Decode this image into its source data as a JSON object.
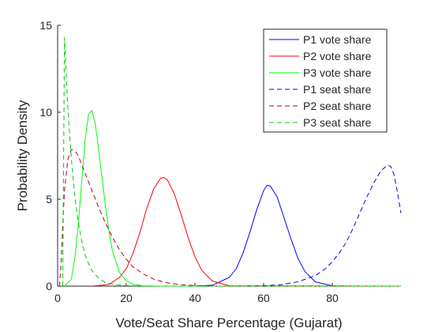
{
  "chart_data": {
    "type": "line",
    "title": "",
    "xlabel": "Vote/Seat Share Percentage (Gujarat)",
    "ylabel": "Probability Density",
    "xlim": [
      0,
      100
    ],
    "ylim": [
      0,
      15
    ],
    "xticks": [
      "0",
      "20",
      "40",
      "60",
      "80"
    ],
    "yticks": [
      "0",
      "5",
      "10",
      "15"
    ],
    "grid": false,
    "legend_position": "top-right",
    "series": [
      {
        "name": "P1 vote share",
        "color": "#0000ff",
        "style": "solid",
        "x": [
          40,
          45,
          50,
          52,
          54,
          56,
          58,
          60,
          61,
          62,
          64,
          66,
          68,
          70,
          72,
          75,
          80,
          85,
          100
        ],
        "y": [
          0,
          0.05,
          0.5,
          1.0,
          1.9,
          3.1,
          4.4,
          5.5,
          5.8,
          5.75,
          5.1,
          3.9,
          2.7,
          1.6,
          0.85,
          0.25,
          0.02,
          0,
          0
        ]
      },
      {
        "name": "P2 vote share",
        "color": "#ff0000",
        "style": "solid",
        "x": [
          10,
          15,
          18,
          20,
          22,
          24,
          26,
          28,
          30,
          31,
          32,
          34,
          36,
          38,
          40,
          42,
          45,
          50,
          100
        ],
        "y": [
          0,
          0.1,
          0.5,
          1.0,
          1.9,
          3.1,
          4.5,
          5.6,
          6.2,
          6.25,
          6.1,
          5.3,
          4.1,
          2.8,
          1.7,
          0.9,
          0.3,
          0.02,
          0
        ]
      },
      {
        "name": "P3 vote share",
        "color": "#00ff00",
        "style": "solid",
        "x": [
          2,
          4,
          5,
          6,
          7,
          8,
          9,
          10,
          11,
          12,
          13,
          14,
          15,
          16,
          18,
          20,
          22,
          25,
          30,
          100
        ],
        "y": [
          0,
          0.4,
          1.6,
          3.5,
          6.0,
          8.4,
          9.9,
          10.1,
          9.3,
          7.8,
          6.1,
          4.5,
          3.1,
          2.0,
          0.8,
          0.3,
          0.1,
          0.02,
          0,
          0
        ]
      },
      {
        "name": "P1 seat share",
        "color": "#0000ff",
        "style": "dashed",
        "x": [
          55,
          60,
          65,
          70,
          75,
          78,
          80,
          82,
          84,
          86,
          88,
          90,
          92,
          94,
          96,
          97,
          98,
          99,
          100
        ],
        "y": [
          0,
          0.02,
          0.08,
          0.25,
          0.6,
          1.0,
          1.4,
          1.9,
          2.5,
          3.3,
          4.2,
          5.1,
          5.9,
          6.6,
          6.95,
          6.9,
          6.4,
          5.4,
          4.2
        ]
      },
      {
        "name": "P2 seat share",
        "color": "#aa0022",
        "style": "dashed",
        "x": [
          0.5,
          1,
          1.5,
          2,
          3,
          4,
          5,
          6,
          7,
          8,
          10,
          12,
          14,
          16,
          18,
          20,
          22,
          25,
          28,
          32,
          36,
          40,
          45,
          100
        ],
        "y": [
          0,
          1.2,
          3.5,
          5.5,
          7.3,
          7.85,
          7.8,
          7.5,
          7.0,
          6.5,
          5.5,
          4.5,
          3.6,
          2.8,
          2.1,
          1.55,
          1.1,
          0.7,
          0.4,
          0.18,
          0.08,
          0.03,
          0,
          0
        ]
      },
      {
        "name": "P3 seat share",
        "color": "#00cc00",
        "style": "dashed",
        "x": [
          1.5,
          2,
          2.5,
          3,
          4,
          5,
          6,
          7,
          8,
          9,
          10,
          12,
          14,
          17,
          20,
          25,
          100
        ],
        "y": [
          0,
          14.3,
          12.2,
          10.2,
          7.3,
          5.2,
          3.7,
          2.6,
          1.8,
          1.3,
          0.9,
          0.45,
          0.2,
          0.08,
          0.03,
          0,
          0
        ]
      }
    ]
  }
}
